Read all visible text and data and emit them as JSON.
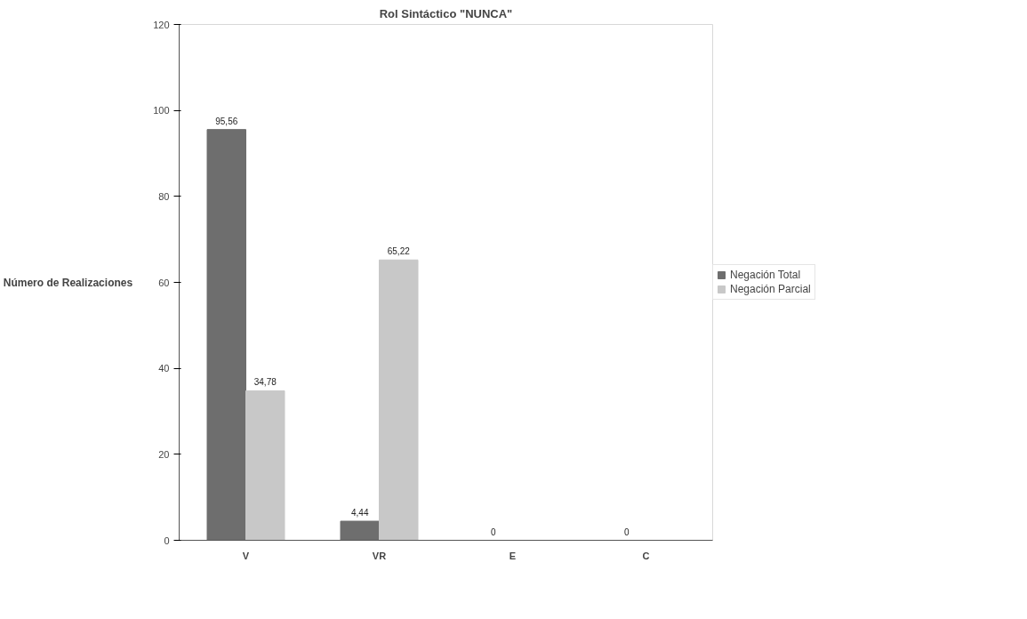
{
  "chart_data": {
    "type": "bar",
    "title": "Rol Sintáctico \"NUNCA\"",
    "ylabel": "Número de Realizaciones",
    "categories": [
      "V",
      "VR",
      "E",
      "C"
    ],
    "series": [
      {
        "name": "Negación Total",
        "color": "#6e6e6e",
        "values": [
          95.56,
          4.44,
          0,
          0
        ],
        "value_labels": [
          "95,56",
          "4,44",
          "0",
          "0"
        ]
      },
      {
        "name": "Negación Parcial",
        "color": "#c8c8c8",
        "values": [
          34.78,
          65.22,
          0,
          0
        ],
        "value_labels": [
          "34,78",
          "65,22",
          null,
          null
        ]
      }
    ],
    "ylim": [
      0,
      120
    ],
    "yticks": [
      0,
      20,
      40,
      60,
      80,
      100,
      120
    ],
    "grid": false,
    "legend": "right"
  }
}
